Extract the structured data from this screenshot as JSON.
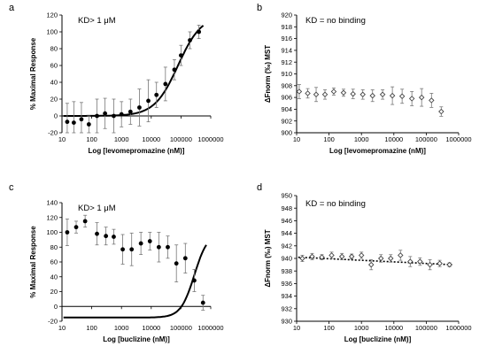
{
  "chart_data": [
    {
      "panel": "a",
      "type": "scatter",
      "annotation": "KD> 1 μM",
      "xlabel": "Log [levomepromazine (nM)]",
      "ylabel": "% Maximal Response",
      "xscale": "log",
      "xlim": [
        10,
        1000000
      ],
      "ylim": [
        -20,
        120
      ],
      "xticks": [
        "10",
        "100",
        "1000",
        "10000",
        "100000",
        "1000000"
      ],
      "yticks": [
        "-20",
        "0",
        "20",
        "40",
        "60",
        "80",
        "100",
        "120"
      ],
      "marker": "filled-circle",
      "fit_line": "sigmoid-solid",
      "series": [
        {
          "x": [
            15,
            25,
            45,
            80,
            150,
            280,
            550,
            1000,
            2000,
            4000,
            8000,
            15000,
            30000,
            60000,
            100000,
            200000,
            400000
          ],
          "y": [
            -7,
            -8,
            -4,
            -10,
            0,
            3,
            0,
            2,
            5,
            10,
            18,
            25,
            38,
            55,
            72,
            90,
            100
          ],
          "err": [
            22,
            25,
            20,
            10,
            20,
            18,
            20,
            15,
            15,
            22,
            25,
            15,
            20,
            12,
            12,
            10,
            8
          ]
        }
      ]
    },
    {
      "panel": "b",
      "type": "scatter",
      "annotation": "KD = no binding",
      "xlabel": "Log [levomepromazine (nM)]",
      "ylabel": "ΔFnorm (‰) MST",
      "xscale": "log",
      "xlim": [
        10,
        1000000
      ],
      "ylim": [
        900,
        920
      ],
      "xticks": [
        "10",
        "100",
        "1000",
        "10000",
        "100000",
        "1000000"
      ],
      "yticks": [
        "900",
        "902",
        "904",
        "906",
        "908",
        "910",
        "912",
        "914",
        "916",
        "918",
        "920"
      ],
      "marker": "open-diamond",
      "series": [
        {
          "x": [
            12,
            22,
            40,
            75,
            140,
            280,
            550,
            1100,
            2200,
            4500,
            9000,
            18000,
            36000,
            72000,
            145000,
            290000
          ],
          "y": [
            907,
            906.7,
            906.5,
            906.5,
            907,
            906.8,
            906.6,
            906.5,
            906.3,
            906.5,
            906.3,
            906.2,
            905.8,
            906,
            905.5,
            903.6
          ],
          "err": [
            1.2,
            0.8,
            1.2,
            0.8,
            0.6,
            0.6,
            0.8,
            0.8,
            1,
            0.8,
            1.5,
            1.2,
            1.2,
            1.5,
            1.2,
            0.8
          ]
        }
      ]
    },
    {
      "panel": "c",
      "type": "scatter",
      "annotation": "KD> 1 μM",
      "xlabel": "Log [buclizine (nM)]",
      "ylabel": "% Maximal Response",
      "xscale": "log",
      "xlim": [
        10,
        1000000
      ],
      "ylim": [
        -20,
        140
      ],
      "xticks": [
        "10",
        "100",
        "1000",
        "10000",
        "100000",
        "1000000"
      ],
      "yticks": [
        "-20",
        "0",
        "20",
        "40",
        "60",
        "80",
        "100",
        "120",
        "140"
      ],
      "marker": "filled-circle",
      "fit_line": "sigmoid-solid",
      "series": [
        {
          "x": [
            15,
            30,
            60,
            150,
            300,
            550,
            1100,
            2200,
            4500,
            9000,
            18000,
            36000,
            70000,
            140000,
            280000,
            550000
          ],
          "y": [
            100,
            107,
            115,
            98,
            95,
            94,
            77,
            77,
            85,
            88,
            80,
            80,
            58,
            65,
            35,
            5
          ],
          "err": [
            18,
            8,
            8,
            15,
            12,
            10,
            20,
            22,
            15,
            12,
            20,
            15,
            25,
            20,
            15,
            10
          ]
        }
      ]
    },
    {
      "panel": "d",
      "type": "scatter",
      "annotation": "KD = no binding",
      "xlabel": "Log [buclizine (nM)]",
      "ylabel": "ΔFnorm (‰) MST",
      "xscale": "log",
      "xlim": [
        10,
        1000000
      ],
      "ylim": [
        930,
        950
      ],
      "xticks": [
        "10",
        "100",
        "1000",
        "10000",
        "100000",
        "1000000"
      ],
      "yticks": [
        "930",
        "932",
        "934",
        "936",
        "938",
        "940",
        "942",
        "944",
        "946",
        "948",
        "950"
      ],
      "marker": "open-diamond",
      "fit_line": "dotted",
      "series": [
        {
          "x": [
            15,
            30,
            60,
            120,
            250,
            500,
            1000,
            2000,
            4000,
            8000,
            16000,
            32000,
            64000,
            130000,
            260000,
            520000
          ],
          "y": [
            940,
            940.3,
            940.2,
            940.5,
            940.3,
            940.3,
            940.5,
            939,
            940,
            940,
            940.5,
            939.5,
            939.5,
            939,
            939.2,
            939
          ],
          "err": [
            0.5,
            0.5,
            0.4,
            0.5,
            0.5,
            0.4,
            0.5,
            0.8,
            0.6,
            0.6,
            0.8,
            0.8,
            0.6,
            0.8,
            0.5,
            0.3
          ]
        }
      ]
    }
  ]
}
